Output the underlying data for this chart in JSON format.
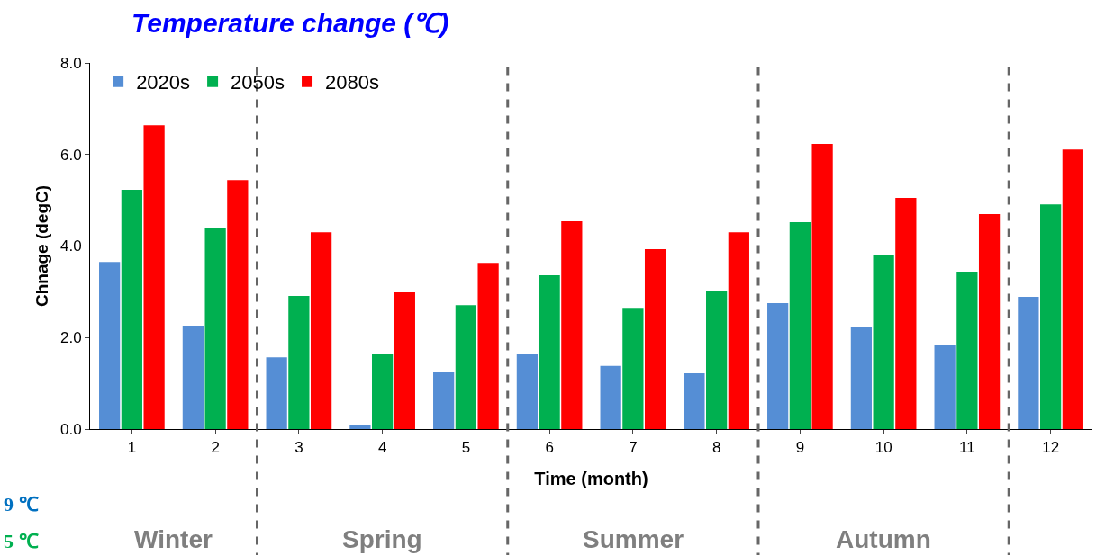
{
  "chart_data": {
    "type": "bar",
    "title": "Temperature change (℃)",
    "xlabel": "Time (month)",
    "ylabel": "Chnage (degC)",
    "x": [
      1,
      2,
      3,
      4,
      5,
      6,
      7,
      8,
      9,
      10,
      11,
      12
    ],
    "xlim": [
      0.5,
      12.5
    ],
    "xticks": [
      1,
      2,
      3,
      4,
      5,
      6,
      7,
      8,
      9,
      10,
      11,
      12
    ],
    "ylim": [
      0,
      8
    ],
    "yticks": [
      {
        "value": 0,
        "label": "0.0"
      },
      {
        "value": 2,
        "label": "2.0"
      },
      {
        "value": 4,
        "label": "4.0"
      },
      {
        "value": 6,
        "label": "6.0"
      },
      {
        "value": 8,
        "label": "8.0"
      }
    ],
    "series": [
      {
        "name": "2020s",
        "color": "#558ed5",
        "values": [
          3.65,
          2.26,
          1.57,
          0.08,
          1.24,
          1.63,
          1.38,
          1.22,
          2.75,
          2.24,
          1.85,
          2.89
        ]
      },
      {
        "name": "2050s",
        "color": "#00b050",
        "values": [
          5.23,
          4.4,
          2.91,
          1.65,
          2.71,
          3.36,
          2.65,
          3.01,
          4.52,
          3.81,
          3.44,
          4.91
        ]
      },
      {
        "name": "2080s",
        "color": "#ff0000",
        "values": [
          6.64,
          5.44,
          4.3,
          2.99,
          3.63,
          4.54,
          3.93,
          4.3,
          6.23,
          5.05,
          4.7,
          6.11
        ]
      }
    ],
    "ref_lines": [
      {
        "axis": "x",
        "value": 2.5,
        "color": "#666666",
        "line_style": "dashed"
      },
      {
        "axis": "x",
        "value": 5.5,
        "color": "#666666",
        "line_style": "dashed"
      },
      {
        "axis": "x",
        "value": 8.5,
        "color": "#666666",
        "line_style": "dashed"
      },
      {
        "axis": "x",
        "value": 11.5,
        "color": "#666666",
        "line_style": "dashed"
      }
    ],
    "annotations": [
      "Winter",
      "Spring",
      "Summer",
      "Autumn",
      "9 ℃",
      "5 ℃"
    ],
    "legend": "top left"
  }
}
